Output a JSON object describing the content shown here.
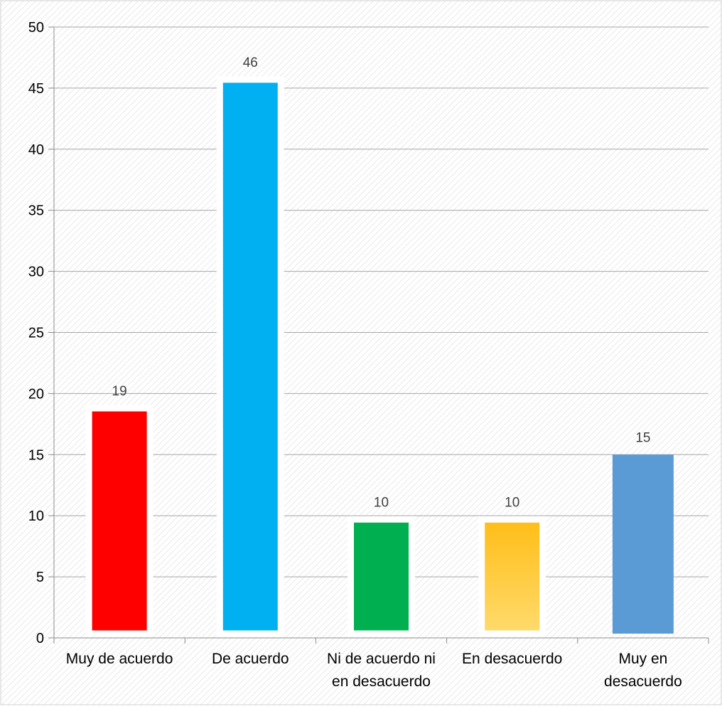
{
  "chart_data": {
    "type": "bar",
    "title": "",
    "xlabel": "",
    "ylabel": "",
    "categories": [
      "Muy de acuerdo",
      "De acuerdo",
      "Ni de acuerdo ni en desacuerdo",
      "En desacuerdo",
      "Muy en desacuerdo"
    ],
    "category_lines": [
      [
        "Muy de acuerdo"
      ],
      [
        "De acuerdo"
      ],
      [
        "Ni de acuerdo ni",
        "en desacuerdo"
      ],
      [
        "En desacuerdo"
      ],
      [
        "Muy en",
        "desacuerdo"
      ]
    ],
    "values": [
      18.8,
      45.7,
      9.7,
      9.7,
      15
    ],
    "data_labels": [
      "19",
      "46",
      "10",
      "10",
      "15"
    ],
    "ylim": [
      0,
      50
    ],
    "yticks": [
      0,
      5,
      10,
      15,
      20,
      25,
      30,
      35,
      40,
      45,
      50
    ],
    "grid": true,
    "legend": "none",
    "bar_colors": [
      "#ff0000",
      "#00b0f0",
      "#00b050",
      "gradient-gold",
      "#5b9bd5"
    ],
    "bar_outlined": [
      true,
      true,
      true,
      true,
      false
    ]
  }
}
